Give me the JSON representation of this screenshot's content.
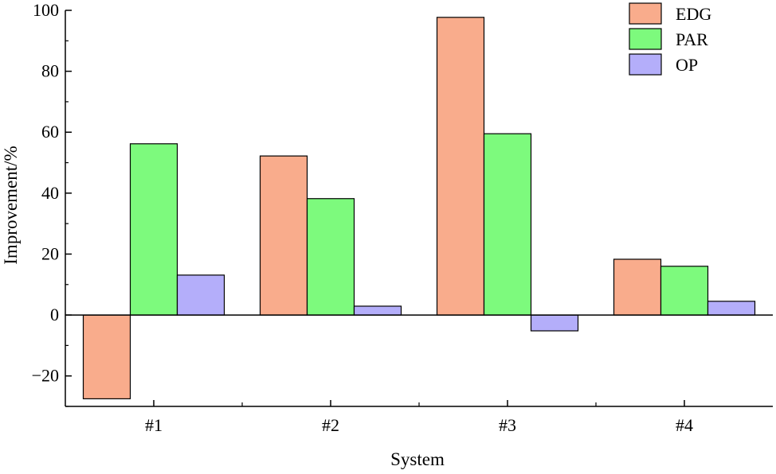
{
  "chart_data": {
    "type": "bar",
    "categories": [
      "#1",
      "#2",
      "#3",
      "#4"
    ],
    "series": [
      {
        "name": "EDG",
        "color": "#f9ac8c",
        "values": [
          -27.5,
          52.2,
          97.7,
          18.3
        ]
      },
      {
        "name": "PAR",
        "color": "#7dfa7d",
        "values": [
          56.2,
          38.2,
          59.5,
          16.0
        ]
      },
      {
        "name": "OP",
        "color": "#b4aefa",
        "values": [
          13.1,
          2.9,
          -5.2,
          4.5
        ]
      }
    ],
    "xlabel": "System",
    "ylabel": "Improvement/%",
    "ylim": [
      -30,
      100
    ],
    "yticks": [
      -20,
      0,
      20,
      40,
      60,
      80,
      100
    ],
    "grid": false,
    "legend_position": "top-right"
  }
}
